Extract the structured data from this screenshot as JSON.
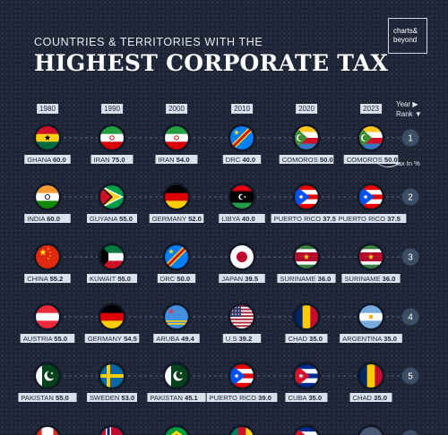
{
  "header": {
    "subtitle": "COUNTRIES & TERRITORIES WITH THE",
    "title": "HIGHEST CORPORATE TAX",
    "logo_line1": "charts&",
    "logo_line2": "beyond"
  },
  "legend": {
    "year_label": "Year ▶",
    "rank_label": "Rank ▼",
    "tax_label": "Tax In %"
  },
  "colors": {
    "background": "#1d2536",
    "label_bg": "#dbe1ea",
    "rank_circle": "#3c4e66"
  },
  "chart_data": {
    "type": "table",
    "years": [
      "1980",
      "1990",
      "2000",
      "2010",
      "2020",
      "2023"
    ],
    "ranks": [
      1,
      2,
      3,
      4,
      5
    ],
    "rows": [
      [
        {
          "country": "GHANA",
          "tax": "60.0",
          "flag": "ghana"
        },
        {
          "country": "IRAN",
          "tax": "75.0",
          "flag": "iran"
        },
        {
          "country": "IRAN",
          "tax": "54.0",
          "flag": "iran"
        },
        {
          "country": "DRC",
          "tax": "40.0",
          "flag": "drc"
        },
        {
          "country": "COMOROS",
          "tax": "50.0",
          "flag": "comoros"
        },
        {
          "country": "COMOROS",
          "tax": "50.0",
          "flag": "comoros"
        }
      ],
      [
        {
          "country": "INDIA",
          "tax": "60.0",
          "flag": "india"
        },
        {
          "country": "GUYANA",
          "tax": "55.0",
          "flag": "guyana"
        },
        {
          "country": "GERMANY",
          "tax": "52.0",
          "flag": "germany"
        },
        {
          "country": "LIBYA",
          "tax": "40.0",
          "flag": "libya"
        },
        {
          "country": "PUERTO RICO",
          "tax": "37.5",
          "flag": "puerto-rico"
        },
        {
          "country": "PUERTO RICO",
          "tax": "37.5",
          "flag": "puerto-rico"
        }
      ],
      [
        {
          "country": "CHINA",
          "tax": "55.2",
          "flag": "china"
        },
        {
          "country": "KUWAIT",
          "tax": "55.0",
          "flag": "kuwait"
        },
        {
          "country": "DRC",
          "tax": "50.0",
          "flag": "drc"
        },
        {
          "country": "JAPAN",
          "tax": "39.5",
          "flag": "japan"
        },
        {
          "country": "SURINAME",
          "tax": "36.0",
          "flag": "suriname"
        },
        {
          "country": "SURINAME",
          "tax": "36.0",
          "flag": "suriname"
        }
      ],
      [
        {
          "country": "AUSTRIA",
          "tax": "55.0",
          "flag": "austria"
        },
        {
          "country": "GERMANY",
          "tax": "54.5",
          "flag": "germany"
        },
        {
          "country": "ARUBA",
          "tax": "49.4",
          "flag": "aruba"
        },
        {
          "country": "U.S",
          "tax": "39.2",
          "flag": "usa"
        },
        {
          "country": "CHAD",
          "tax": "35.0",
          "flag": "chad"
        },
        {
          "country": "ARGENTINA",
          "tax": "35.0",
          "flag": "argentina"
        }
      ],
      [
        {
          "country": "PAKISTAN",
          "tax": "55.0",
          "flag": "pakistan"
        },
        {
          "country": "SWEDEN",
          "tax": "53.0",
          "flag": "sweden"
        },
        {
          "country": "PAKISTAN",
          "tax": "45.1",
          "flag": "pakistan"
        },
        {
          "country": "PUERTO RICO",
          "tax": "39.0",
          "flag": "puerto-rico"
        },
        {
          "country": "CUBA",
          "tax": "35.0",
          "flag": "cuba"
        },
        {
          "country": "CHAD",
          "tax": "35.0",
          "flag": "chad"
        }
      ]
    ],
    "partial_next_row_flags": [
      "canada",
      "norway",
      "brazil",
      "cameroon",
      "cuba",
      "unknown"
    ]
  }
}
